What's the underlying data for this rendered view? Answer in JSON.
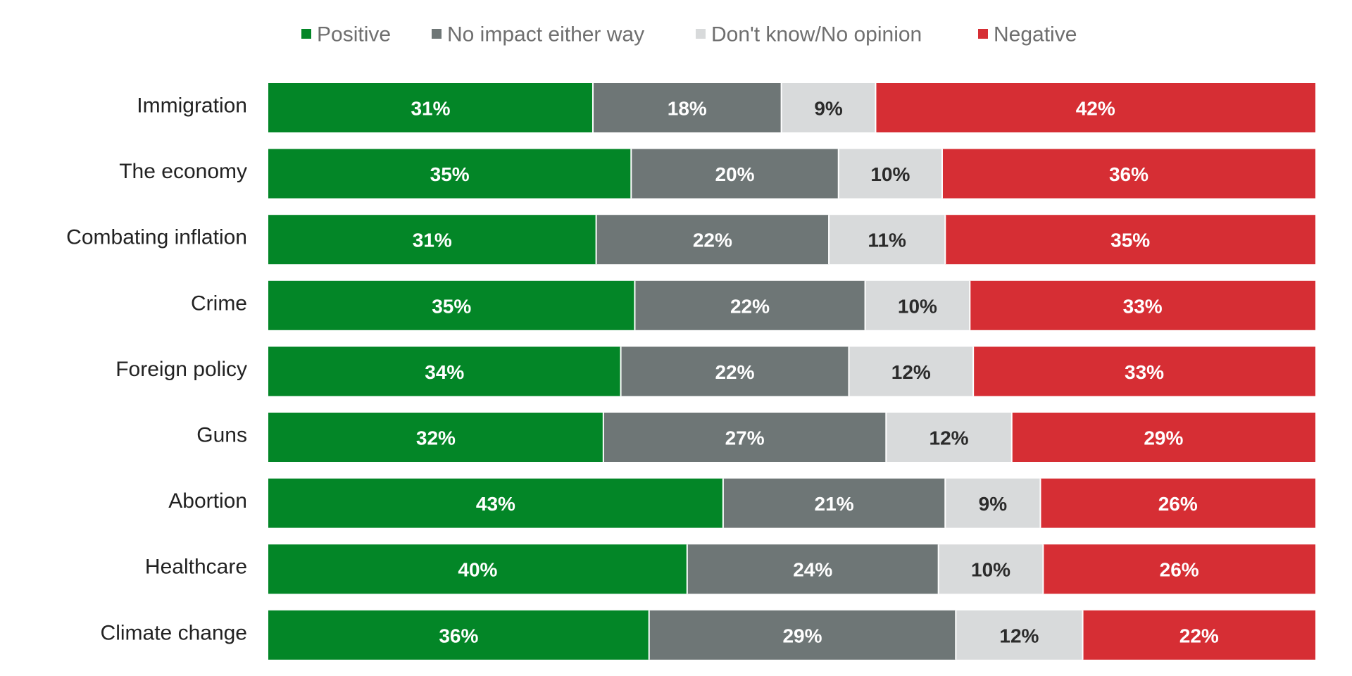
{
  "chart_data": {
    "type": "bar",
    "orientation": "horizontal",
    "stacked": true,
    "title": "",
    "xlabel": "",
    "ylabel": "",
    "grid": false,
    "legend_position": "top",
    "categories": [
      "Immigration",
      "The economy",
      "Combating inflation",
      "Crime",
      "Foreign policy",
      "Guns",
      "Abortion",
      "Healthcare",
      "Climate change"
    ],
    "series": [
      {
        "name": "Positive",
        "color": "#038627",
        "label_color": "#ffffff",
        "values": [
          31,
          35,
          31,
          35,
          34,
          32,
          43,
          40,
          36
        ]
      },
      {
        "name": "No impact either way",
        "color": "#6e7676",
        "label_color": "#ffffff",
        "values": [
          18,
          20,
          22,
          22,
          22,
          27,
          21,
          24,
          29
        ]
      },
      {
        "name": "Don't know/No opinion",
        "color": "#d8dadb",
        "label_color": "#2b2b2b",
        "values": [
          9,
          10,
          11,
          10,
          12,
          12,
          9,
          10,
          12
        ]
      },
      {
        "name": "Negative",
        "color": "#d62e34",
        "label_color": "#ffffff",
        "values": [
          42,
          36,
          35,
          33,
          33,
          29,
          26,
          26,
          22
        ]
      }
    ],
    "value_suffix": "%"
  }
}
